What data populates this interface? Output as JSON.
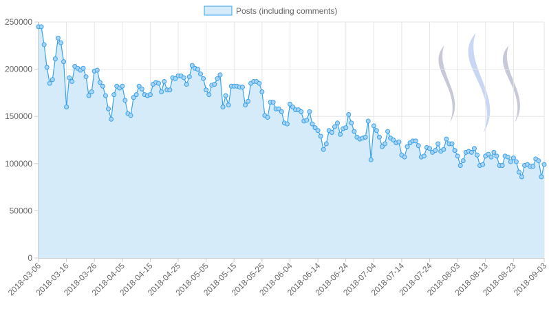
{
  "chart_data": {
    "type": "area",
    "title": "",
    "xlabel": "",
    "ylabel": "",
    "ylim": [
      0,
      250000
    ],
    "y_ticks": [
      "0",
      "50000",
      "100000",
      "150000",
      "200000",
      "250000"
    ],
    "x_ticks": [
      "2018-03-06",
      "2018-03-16",
      "2018-03-26",
      "2018-04-05",
      "2018-04-15",
      "2018-04-25",
      "2018-05-05",
      "2018-05-15",
      "2018-05-25",
      "2018-06-04",
      "2018-06-14",
      "2018-06-24",
      "2018-07-04",
      "2018-07-14",
      "2018-07-24",
      "2018-08-03",
      "2018-08-13",
      "2018-08-23",
      "2018-09-03"
    ],
    "x_start": "2018-03-06",
    "x_end": "2018-09-03",
    "grid": true,
    "legend": "top-center",
    "series": [
      {
        "name": "Posts (including comments)",
        "line_color": "#36a2eb",
        "fill_color": "#d6ebfa",
        "values": [
          245000,
          245000,
          226000,
          202000,
          185000,
          189000,
          211000,
          233000,
          228000,
          208000,
          160000,
          191000,
          187000,
          203000,
          201000,
          199000,
          201000,
          192000,
          172000,
          176000,
          198000,
          199000,
          186000,
          182000,
          172000,
          158000,
          147000,
          173000,
          182000,
          180000,
          182000,
          167000,
          153000,
          151000,
          170000,
          173000,
          182000,
          179000,
          173000,
          172000,
          173000,
          184000,
          186000,
          185000,
          176000,
          187000,
          178000,
          178000,
          191000,
          190000,
          193000,
          193000,
          191000,
          184000,
          192000,
          204000,
          201000,
          200000,
          195000,
          190000,
          178000,
          173000,
          183000,
          184000,
          190000,
          194000,
          160000,
          172000,
          162000,
          182000,
          182000,
          182000,
          181000,
          181000,
          162000,
          166000,
          185000,
          187000,
          187000,
          185000,
          176000,
          151000,
          149000,
          165000,
          165000,
          158000,
          158000,
          155000,
          143000,
          142000,
          163000,
          160000,
          157000,
          157000,
          155000,
          145000,
          146000,
          155000,
          142000,
          138000,
          135000,
          129000,
          115000,
          121000,
          135000,
          133000,
          139000,
          143000,
          131000,
          137000,
          138000,
          152000,
          143000,
          134000,
          128000,
          126000,
          127000,
          128000,
          145000,
          104000,
          140000,
          135000,
          128000,
          118000,
          121000,
          134000,
          127000,
          125000,
          122000,
          123000,
          109000,
          107000,
          118000,
          122000,
          124000,
          124000,
          119000,
          107000,
          108000,
          117000,
          116000,
          112000,
          114000,
          121000,
          113000,
          115000,
          126000,
          121000,
          121000,
          114000,
          108000,
          98000,
          103000,
          112000,
          113000,
          112000,
          116000,
          109000,
          98000,
          99000,
          108000,
          110000,
          107000,
          112000,
          108000,
          98000,
          98000,
          108000,
          107000,
          102000,
          106000,
          102000,
          91000,
          86000,
          98000,
          99000,
          97000,
          97000,
          105000,
          103000,
          86000,
          99000
        ]
      }
    ]
  },
  "watermark": {
    "name": "steem-logo",
    "colors": [
      "#c7c9d9",
      "#c9d7f5",
      "#c7c9d9"
    ]
  }
}
